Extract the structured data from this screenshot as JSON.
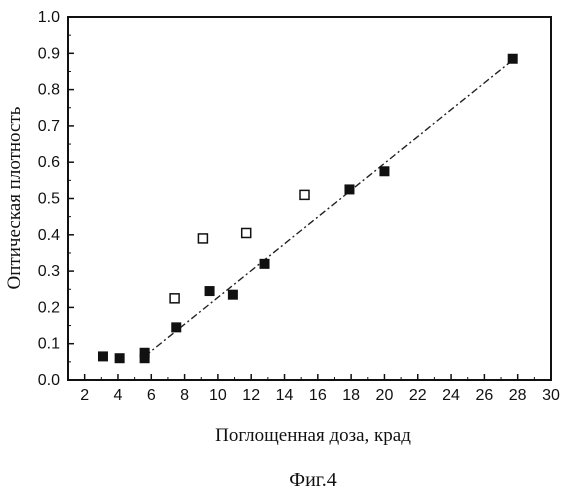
{
  "chart_data": {
    "type": "scatter",
    "xlabel": "Поглощенная доза, крад",
    "ylabel": "Оптическая плотность",
    "xlim": [
      1,
      30
    ],
    "ylim": [
      0,
      1.0
    ],
    "x_ticks": [
      2,
      4,
      6,
      8,
      10,
      12,
      14,
      16,
      18,
      20,
      22,
      24,
      26,
      28,
      30
    ],
    "y_ticks": [
      0.0,
      0.1,
      0.2,
      0.3,
      0.4,
      0.5,
      0.6,
      0.7,
      0.8,
      0.9,
      1.0
    ],
    "y_tick_labels": [
      "0.0",
      "0.1",
      "0.2",
      "0.3",
      "0.4",
      "0.5",
      "0.6",
      "0.7",
      "0.8",
      "0.9",
      "1.0"
    ],
    "grid": false,
    "series": [
      {
        "marker": "filled-square",
        "color": "#111111",
        "x": [
          3.1,
          4.1,
          5.6,
          5.6,
          7.5,
          9.5,
          10.9,
          12.8,
          17.9,
          20.0,
          27.7
        ],
        "y": [
          0.065,
          0.06,
          0.075,
          0.06,
          0.145,
          0.245,
          0.235,
          0.32,
          0.525,
          0.575,
          0.885
        ]
      },
      {
        "marker": "open-square",
        "color": "#111111",
        "x": [
          7.4,
          9.1,
          11.7,
          15.2
        ],
        "y": [
          0.225,
          0.39,
          0.405,
          0.51
        ]
      }
    ],
    "fit_line": {
      "style": "dash-dot",
      "x": [
        5.6,
        27.8
      ],
      "y": [
        0.065,
        0.885
      ]
    }
  },
  "caption": "Фиг.4"
}
